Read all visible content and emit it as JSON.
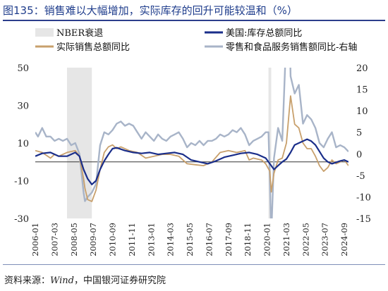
{
  "title": "图135：销售难以大幅增加，实际库存的回升可能较温和（%）",
  "source": {
    "prefix": "资料来源：",
    "wind": "Wind",
    "suffix": "，中国银河证券研究院"
  },
  "chart_data": {
    "type": "line",
    "legend": [
      {
        "key": "nber",
        "label": "NBER衰退",
        "color": "#e6e6e6",
        "kind": "band"
      },
      {
        "key": "inv",
        "label": "美国:库存总额同比",
        "color": "#1a2e8a",
        "kind": "line"
      },
      {
        "key": "real",
        "label": "实际销售总额同比",
        "color": "#c8a06c",
        "kind": "line"
      },
      {
        "key": "retail",
        "label": "零售和食品服务销售额同比-右轴",
        "color": "#a8b4c8",
        "kind": "line"
      }
    ],
    "y_left": {
      "min": -30,
      "max": 50,
      "ticks": [
        50,
        30,
        10,
        -10,
        -30
      ]
    },
    "y_right": {
      "min": -15,
      "max": 20,
      "ticks": [
        20,
        15,
        10,
        5,
        0,
        -5,
        -10,
        -15
      ]
    },
    "x_range": [
      "2006-01",
      "2024-12"
    ],
    "x_ticks": [
      "2006-01",
      "2007-03",
      "2008-05",
      "2009-07",
      "2010-09",
      "2011-11",
      "2013-01",
      "2014-03",
      "2015-05",
      "2016-07",
      "2017-09",
      "2018-11",
      "2020-01",
      "2021-03",
      "2022-05",
      "2023-07",
      "2024-09"
    ],
    "recessions": [
      {
        "start": "2007-12",
        "end": "2009-06"
      },
      {
        "start": "2020-02",
        "end": "2020-04"
      }
    ],
    "series": [
      {
        "key": "inv",
        "axis": "left",
        "color": "#1a2e8a",
        "width": 2.2,
        "points": [
          [
            "2006-01",
            3
          ],
          [
            "2006-06",
            4.5
          ],
          [
            "2006-12",
            5
          ],
          [
            "2007-06",
            3
          ],
          [
            "2007-12",
            3
          ],
          [
            "2008-06",
            5
          ],
          [
            "2008-09",
            3
          ],
          [
            "2008-12",
            -4
          ],
          [
            "2009-03",
            -9
          ],
          [
            "2009-06",
            -12
          ],
          [
            "2009-09",
            -10
          ],
          [
            "2009-12",
            -4
          ],
          [
            "2010-03",
            0.5
          ],
          [
            "2010-06",
            4
          ],
          [
            "2010-09",
            7
          ],
          [
            "2010-12",
            7.5
          ],
          [
            "2011-06",
            6
          ],
          [
            "2011-12",
            5
          ],
          [
            "2012-06",
            4.5
          ],
          [
            "2012-12",
            5
          ],
          [
            "2013-06",
            4
          ],
          [
            "2013-12",
            4.5
          ],
          [
            "2014-06",
            5
          ],
          [
            "2014-12",
            4
          ],
          [
            "2015-06",
            1
          ],
          [
            "2015-12",
            0
          ],
          [
            "2016-06",
            -1
          ],
          [
            "2016-12",
            0.5
          ],
          [
            "2017-06",
            2.5
          ],
          [
            "2017-12",
            3.5
          ],
          [
            "2018-06",
            4.5
          ],
          [
            "2018-12",
            5
          ],
          [
            "2019-06",
            4
          ],
          [
            "2019-12",
            2
          ],
          [
            "2020-03",
            -1
          ],
          [
            "2020-06",
            -4
          ],
          [
            "2020-09",
            -2
          ],
          [
            "2020-12",
            0
          ],
          [
            "2021-03",
            1.5
          ],
          [
            "2021-06",
            5
          ],
          [
            "2021-09",
            9
          ],
          [
            "2021-12",
            10
          ],
          [
            "2022-06",
            12
          ],
          [
            "2022-09",
            11
          ],
          [
            "2022-12",
            9
          ],
          [
            "2023-06",
            2
          ],
          [
            "2023-09",
            0
          ],
          [
            "2023-12",
            -1
          ],
          [
            "2024-06",
            0.5
          ],
          [
            "2024-09",
            1
          ],
          [
            "2024-12",
            0
          ]
        ]
      },
      {
        "key": "real",
        "axis": "left",
        "color": "#c8a06c",
        "width": 1.8,
        "points": [
          [
            "2006-01",
            6
          ],
          [
            "2006-06",
            5
          ],
          [
            "2006-12",
            2
          ],
          [
            "2007-03",
            4
          ],
          [
            "2007-06",
            3
          ],
          [
            "2007-12",
            5
          ],
          [
            "2008-06",
            6
          ],
          [
            "2008-09",
            3
          ],
          [
            "2008-12",
            -9
          ],
          [
            "2009-01",
            -14
          ],
          [
            "2009-03",
            -20
          ],
          [
            "2009-06",
            -21
          ],
          [
            "2009-09",
            -15
          ],
          [
            "2009-12",
            -4
          ],
          [
            "2010-03",
            5
          ],
          [
            "2010-06",
            8
          ],
          [
            "2010-09",
            9
          ],
          [
            "2010-12",
            7
          ],
          [
            "2011-03",
            8
          ],
          [
            "2011-09",
            6
          ],
          [
            "2012-03",
            5
          ],
          [
            "2012-09",
            2
          ],
          [
            "2013-03",
            3
          ],
          [
            "2013-09",
            4
          ],
          [
            "2014-03",
            4
          ],
          [
            "2014-09",
            3
          ],
          [
            "2015-03",
            -1
          ],
          [
            "2015-09",
            -1.5
          ],
          [
            "2016-03",
            -2
          ],
          [
            "2016-09",
            0
          ],
          [
            "2017-03",
            5
          ],
          [
            "2017-09",
            6
          ],
          [
            "2018-03",
            5
          ],
          [
            "2018-09",
            6
          ],
          [
            "2018-12",
            1
          ],
          [
            "2019-03",
            2
          ],
          [
            "2019-09",
            1
          ],
          [
            "2019-12",
            -1
          ],
          [
            "2020-03",
            -5
          ],
          [
            "2020-04",
            -16
          ],
          [
            "2020-06",
            -6
          ],
          [
            "2020-09",
            1
          ],
          [
            "2020-12",
            2
          ],
          [
            "2021-03",
            10
          ],
          [
            "2021-06",
            35
          ],
          [
            "2021-09",
            20
          ],
          [
            "2021-12",
            18
          ],
          [
            "2022-03",
            10
          ],
          [
            "2022-06",
            7
          ],
          [
            "2022-09",
            7
          ],
          [
            "2022-12",
            3
          ],
          [
            "2023-03",
            -2
          ],
          [
            "2023-06",
            -5
          ],
          [
            "2023-09",
            -3
          ],
          [
            "2023-12",
            1
          ],
          [
            "2024-03",
            -1
          ],
          [
            "2024-06",
            0
          ],
          [
            "2024-09",
            1
          ],
          [
            "2024-12",
            -2
          ]
        ]
      },
      {
        "key": "retail",
        "axis": "right",
        "color": "#a8b4c8",
        "width": 2.4,
        "points": [
          [
            "2006-01",
            5
          ],
          [
            "2006-03",
            4
          ],
          [
            "2006-06",
            6
          ],
          [
            "2006-09",
            4
          ],
          [
            "2006-12",
            4
          ],
          [
            "2007-03",
            3
          ],
          [
            "2007-06",
            3.5
          ],
          [
            "2007-09",
            3
          ],
          [
            "2007-12",
            3.5
          ],
          [
            "2008-03",
            2
          ],
          [
            "2008-06",
            2.5
          ],
          [
            "2008-09",
            0
          ],
          [
            "2008-12",
            -9
          ],
          [
            "2009-01",
            -11
          ],
          [
            "2009-03",
            -10
          ],
          [
            "2009-06",
            -9
          ],
          [
            "2009-09",
            -7
          ],
          [
            "2009-12",
            2
          ],
          [
            "2010-03",
            5
          ],
          [
            "2010-06",
            4.5
          ],
          [
            "2010-09",
            5.5
          ],
          [
            "2010-12",
            7
          ],
          [
            "2011-03",
            7.5
          ],
          [
            "2011-06",
            6.5
          ],
          [
            "2011-09",
            7
          ],
          [
            "2011-12",
            6.5
          ],
          [
            "2012-03",
            5
          ],
          [
            "2012-06",
            3.5
          ],
          [
            "2012-09",
            5
          ],
          [
            "2012-12",
            4
          ],
          [
            "2013-03",
            3
          ],
          [
            "2013-06",
            4.5
          ],
          [
            "2013-09",
            3.5
          ],
          [
            "2013-12",
            3
          ],
          [
            "2014-03",
            4
          ],
          [
            "2014-06",
            4.5
          ],
          [
            "2014-09",
            5
          ],
          [
            "2014-12",
            3.5
          ],
          [
            "2015-03",
            1.5
          ],
          [
            "2015-06",
            2.5
          ],
          [
            "2015-09",
            2
          ],
          [
            "2015-12",
            3
          ],
          [
            "2016-03",
            2
          ],
          [
            "2016-06",
            3
          ],
          [
            "2016-09",
            3
          ],
          [
            "2016-12",
            3.5
          ],
          [
            "2017-03",
            4.5
          ],
          [
            "2017-06",
            4
          ],
          [
            "2017-09",
            4.5
          ],
          [
            "2017-12",
            5.5
          ],
          [
            "2018-03",
            5
          ],
          [
            "2018-06",
            6
          ],
          [
            "2018-09",
            4.5
          ],
          [
            "2018-12",
            2
          ],
          [
            "2019-03",
            3
          ],
          [
            "2019-06",
            3.5
          ],
          [
            "2019-09",
            4
          ],
          [
            "2019-12",
            5
          ],
          [
            "2020-02",
            5
          ],
          [
            "2020-03",
            -6
          ],
          [
            "2020-04",
            -19
          ],
          [
            "2020-06",
            -1
          ],
          [
            "2020-09",
            6
          ],
          [
            "2020-12",
            3
          ],
          [
            "2021-03",
            28
          ],
          [
            "2021-04",
            51
          ],
          [
            "2021-06",
            18
          ],
          [
            "2021-09",
            14
          ],
          [
            "2021-12",
            16
          ],
          [
            "2022-03",
            7
          ],
          [
            "2022-06",
            9
          ],
          [
            "2022-09",
            8
          ],
          [
            "2022-12",
            6
          ],
          [
            "2023-03",
            2.5
          ],
          [
            "2023-06",
            1.5
          ],
          [
            "2023-09",
            3.5
          ],
          [
            "2023-12",
            5
          ],
          [
            "2024-03",
            1.5
          ],
          [
            "2024-06",
            2
          ],
          [
            "2024-09",
            1.5
          ],
          [
            "2024-12",
            0.5
          ]
        ]
      }
    ]
  }
}
